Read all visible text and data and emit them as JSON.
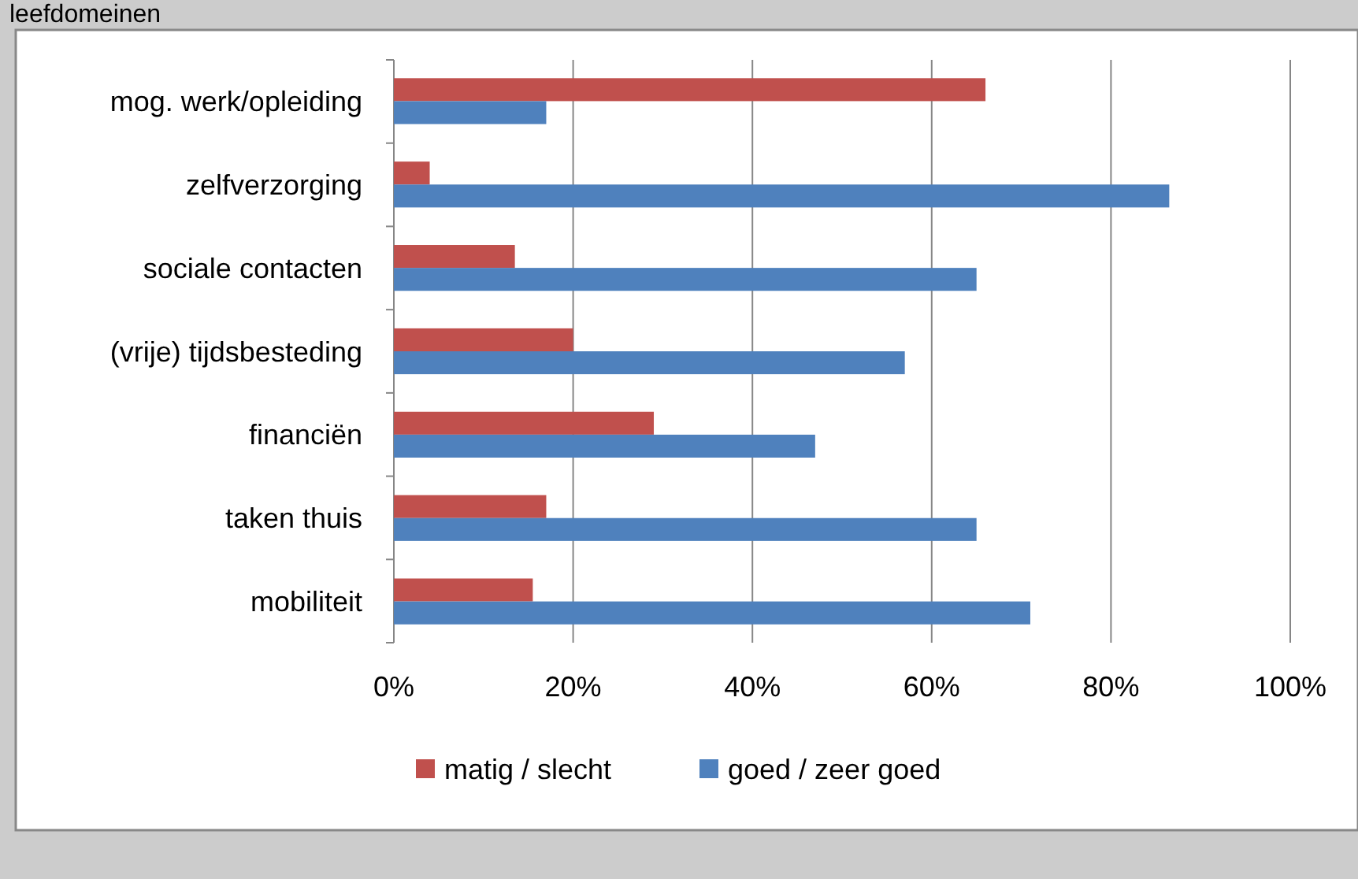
{
  "chart_data": {
    "type": "bar",
    "orientation": "horizontal",
    "title": "leefdomeinen",
    "categories": [
      "mog. werk/opleiding",
      "zelfverzorging",
      "sociale contacten",
      "(vrije) tijdsbesteding",
      "financiën",
      "taken thuis",
      "mobiliteit"
    ],
    "series": [
      {
        "name": "matig / slecht",
        "color": "#c0504d",
        "values": [
          66,
          4,
          13.5,
          20,
          29,
          17,
          15.5
        ]
      },
      {
        "name": "goed / zeer goed",
        "color": "#4f81bd",
        "values": [
          17,
          86.5,
          65,
          57,
          47,
          65,
          71
        ]
      }
    ],
    "xlim": [
      0,
      100
    ],
    "xticks": [
      {
        "value": 0,
        "label": "0%"
      },
      {
        "value": 20,
        "label": "20%"
      },
      {
        "value": 40,
        "label": "40%"
      },
      {
        "value": 60,
        "label": "60%"
      },
      {
        "value": 80,
        "label": "80%"
      },
      {
        "value": 100,
        "label": "100%"
      }
    ],
    "grid": "x",
    "legend": "bottom"
  }
}
